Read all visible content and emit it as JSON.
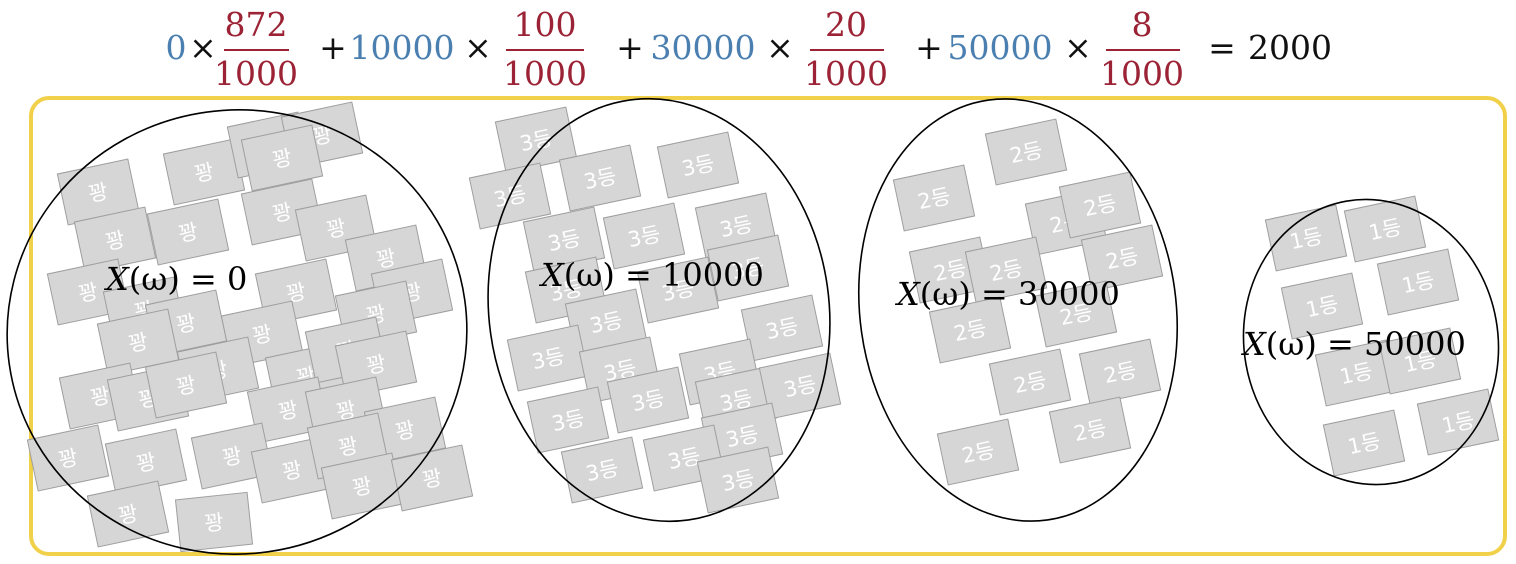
{
  "equation": {
    "terms": [
      {
        "value": "0",
        "numerator": "872",
        "denominator": "1000"
      },
      {
        "value": "10000",
        "numerator": "100",
        "denominator": "1000"
      },
      {
        "value": "30000",
        "numerator": "20",
        "denominator": "1000"
      },
      {
        "value": "50000",
        "numerator": "8",
        "denominator": "1000"
      }
    ],
    "times": "×",
    "plus": "+",
    "equals": "=",
    "result": "2000"
  },
  "groups": [
    {
      "ticket_label": "꽝",
      "x_prefix": "X",
      "x_omega": "(ω) = ",
      "x_value": "0"
    },
    {
      "ticket_label": "3등",
      "x_prefix": "X",
      "x_omega": "(ω) = ",
      "x_value": "10000"
    },
    {
      "ticket_label": "2등",
      "x_prefix": "X",
      "x_omega": "(ω) = ",
      "x_value": "30000"
    },
    {
      "ticket_label": "1등",
      "x_prefix": "X",
      "x_omega": "(ω) = ",
      "x_value": "50000"
    }
  ],
  "colors": {
    "fraction": "#9b2335",
    "value": "#4a7fb0",
    "frame": "#f2d14a",
    "ticket_fill": "#d6d6d6",
    "ticket_stroke": "#9e9e9e"
  }
}
